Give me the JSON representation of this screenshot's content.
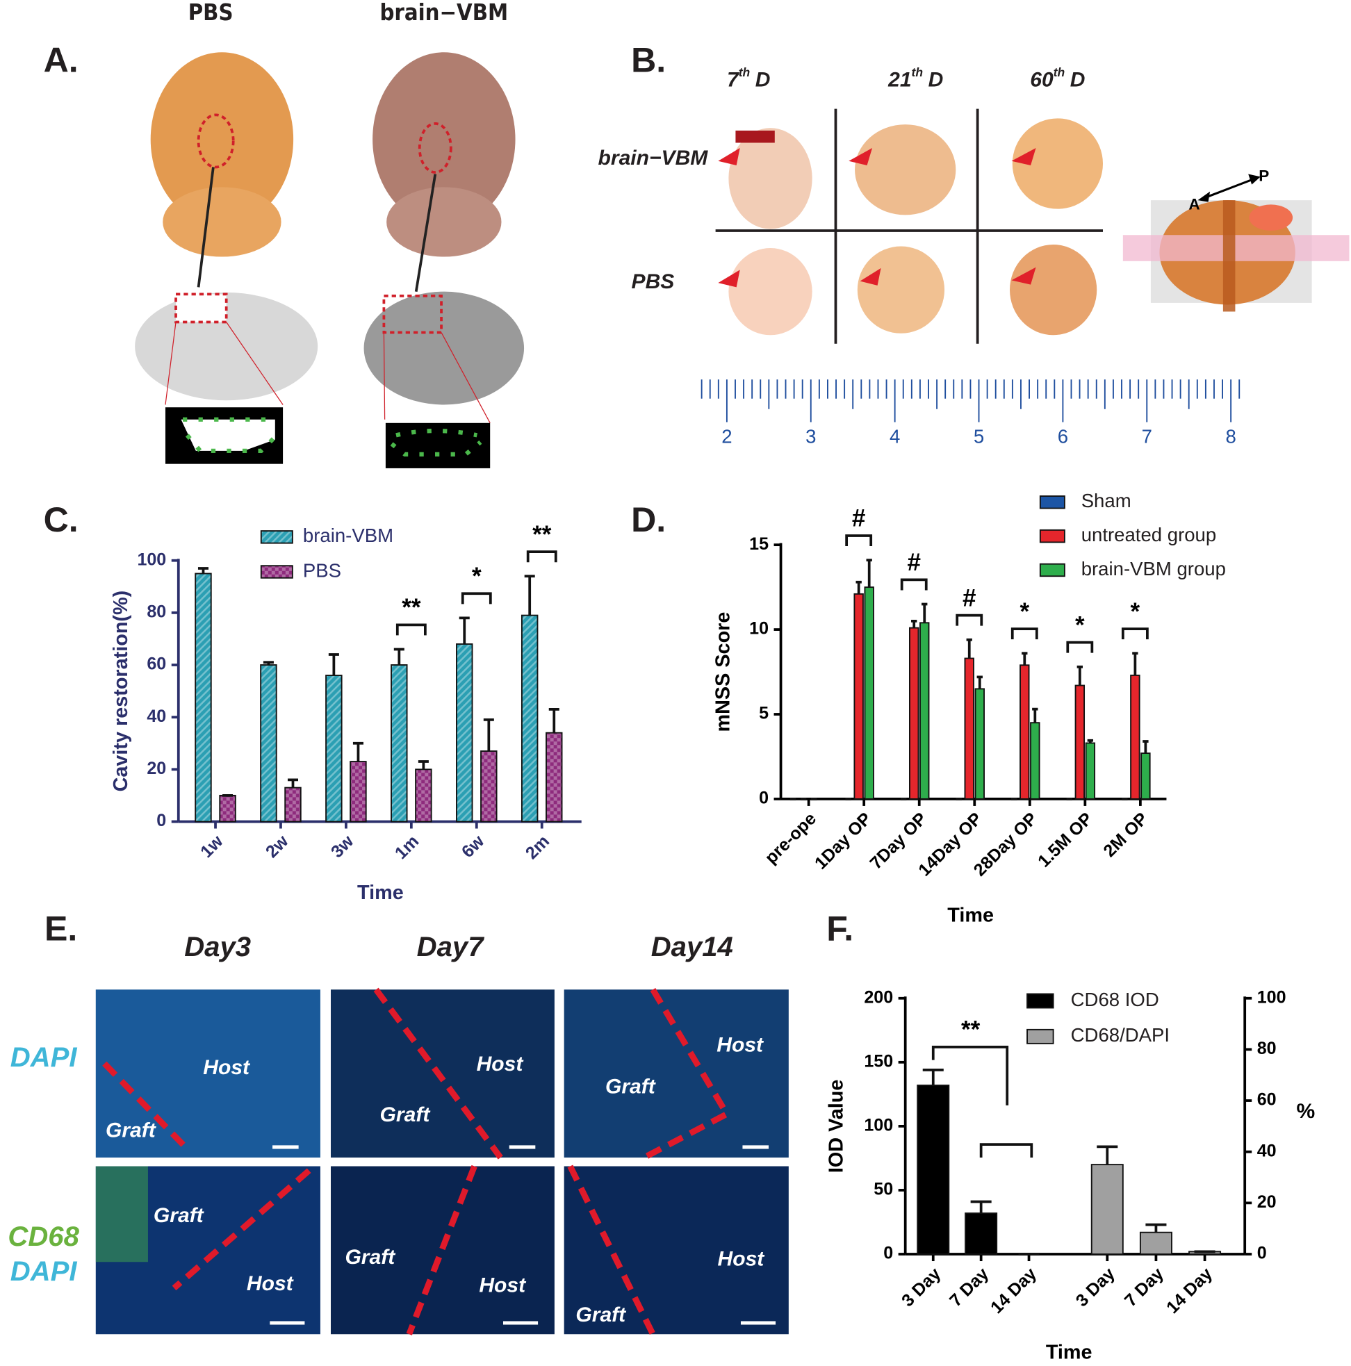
{
  "panels": {
    "A": {
      "label": "A.",
      "columns": [
        "PBS",
        "brain−VBM"
      ]
    },
    "B": {
      "label": "B.",
      "times": [
        {
          "num": "7",
          "sup": "th",
          "unit": "D"
        },
        {
          "num": "21",
          "sup": "th",
          "unit": "D"
        },
        {
          "num": "60",
          "sup": "th",
          "unit": "D"
        }
      ],
      "rows": [
        "brain−VBM",
        "PBS"
      ],
      "axis": [
        "A",
        "P"
      ],
      "ruler": [
        2,
        3,
        4,
        5,
        6,
        7,
        8
      ]
    },
    "C": {
      "label": "C."
    },
    "D": {
      "label": "D."
    },
    "E": {
      "label": "E.",
      "columns": [
        "Day3",
        "Day7",
        "Day14"
      ],
      "rows": [
        [
          "DAPI"
        ],
        [
          "CD68",
          "DAPI"
        ]
      ],
      "regions": [
        [
          "Host",
          "Graft"
        ],
        [
          "Host",
          "Graft"
        ],
        [
          "Host",
          "Graft"
        ],
        [
          "Graft",
          "Host"
        ],
        [
          "Graft",
          "Host"
        ],
        [
          "Host",
          "Graft"
        ]
      ]
    },
    "F": {
      "label": "F."
    }
  },
  "chart_data": [
    {
      "type": "bar",
      "xlabel": "Time",
      "ylabel": "Cavity restoration(%)",
      "categories": [
        "1w",
        "2w",
        "3w",
        "1m",
        "6w",
        "2m"
      ],
      "series": [
        {
          "name": "brain-VBM",
          "color": "#2b9fb3",
          "pattern": "stripes",
          "values": [
            95,
            60,
            56,
            60,
            68,
            79
          ],
          "errors": [
            2,
            1,
            8,
            6,
            10,
            15
          ]
        },
        {
          "name": "PBS",
          "color": "#8e2b7d",
          "pattern": "checks",
          "values": [
            10,
            13,
            23,
            20,
            27,
            34
          ],
          "errors": [
            0,
            3,
            7,
            3,
            12,
            9
          ]
        }
      ],
      "significance": [
        null,
        null,
        null,
        "**",
        "*",
        "**"
      ],
      "ylim": [
        0,
        100
      ],
      "yticks": [
        0,
        20,
        40,
        60,
        80,
        100
      ],
      "axis_color": "#2b2f6b"
    },
    {
      "type": "bar",
      "xlabel": "Time",
      "ylabel": "mNSS Score",
      "categories": [
        "pre-ope",
        "1Day OP",
        "7Day OP",
        "14Day OP",
        "28Day OP",
        "1.5M OP",
        "2M OP"
      ],
      "series": [
        {
          "name": "Sham",
          "color": "#1c55a5",
          "values": [
            0,
            0,
            0,
            0,
            0,
            0,
            0
          ],
          "errors": [
            0,
            0,
            0,
            0,
            0,
            0,
            0
          ]
        },
        {
          "name": "untreated group",
          "color": "#e5262c",
          "values": [
            0,
            12.1,
            10.1,
            8.3,
            7.9,
            6.7,
            7.3
          ],
          "errors": [
            0,
            0.7,
            0.4,
            1.1,
            0.7,
            1.1,
            1.3
          ]
        },
        {
          "name": "brain-VBM group",
          "color": "#2eae4c",
          "values": [
            0,
            12.5,
            10.4,
            6.5,
            4.5,
            3.3,
            2.7
          ],
          "errors": [
            0,
            1.6,
            1.1,
            0.7,
            0.8,
            0.15,
            0.7
          ]
        }
      ],
      "significance": [
        null,
        "#",
        "#",
        "#",
        "*",
        "*",
        "*"
      ],
      "ylim": [
        0,
        15
      ],
      "yticks": [
        0,
        5,
        10,
        15
      ],
      "axis_color": "#000000"
    },
    {
      "type": "bar",
      "xlabel": "Time",
      "ylabel": "IOD Value",
      "y2label": "%",
      "categories": [
        "3 Day",
        "7 Day",
        "14 Day",
        "3 Day",
        "7 Day",
        "14 Day"
      ],
      "series": [
        {
          "name": "CD68 IOD",
          "color": "#000000",
          "values": [
            132,
            32,
            0,
            null,
            null,
            null
          ],
          "errors": [
            12,
            9,
            0,
            null,
            null,
            null
          ]
        },
        {
          "name": "CD68/DAPI",
          "color": "#a0a0a0",
          "axis": "y2",
          "values": [
            null,
            null,
            null,
            35,
            8.5,
            1
          ],
          "errors": [
            null,
            null,
            null,
            7,
            3,
            0
          ]
        }
      ],
      "annotation": "**",
      "ylim": [
        0,
        200
      ],
      "yticks": [
        0,
        50,
        100,
        150,
        200
      ],
      "y2lim": [
        0,
        100
      ],
      "y2ticks": [
        0,
        20,
        40,
        60,
        80,
        100
      ],
      "axis_color": "#000000"
    }
  ]
}
